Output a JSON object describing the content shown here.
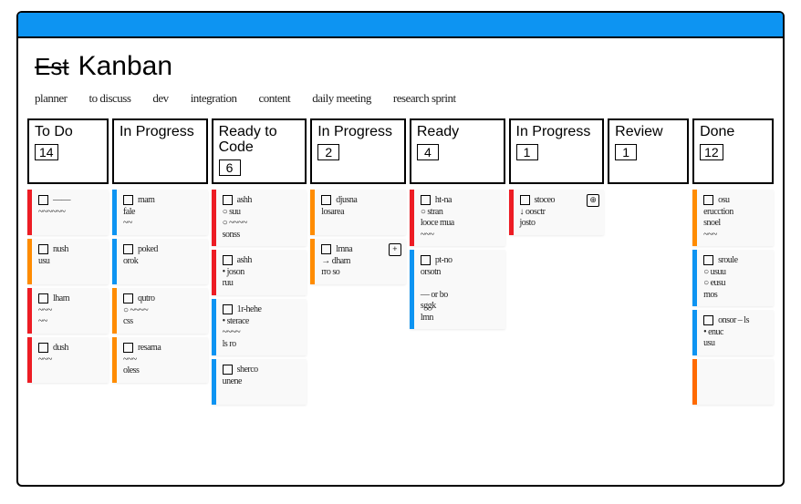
{
  "colors": {
    "frame": "#000000",
    "topbar": "#0d94f2",
    "shadow": "#e2e2e2",
    "card_bg": "#f9f9f9",
    "stripe_red": "#ed1c24",
    "stripe_orange": "#ff8c00",
    "stripe_blue": "#0d94f2",
    "stripe_orange2": "#ff6a00"
  },
  "title_struck": "Est",
  "title": "Kanban",
  "tabs": [
    "Planner",
    "To discuss",
    "Dev",
    "Integration",
    "Content",
    "Daily meeting",
    "Research sprint"
  ],
  "columns": [
    {
      "title": "To Do",
      "count": "14",
      "narrow": true,
      "cards": [
        {
          "stripe": "stripe_red",
          "lines": [
            "▢ ——",
            "~~~~~~"
          ]
        },
        {
          "stripe": "stripe_orange",
          "lines": [
            "▢ nush",
            "usu"
          ]
        },
        {
          "stripe": "stripe_red",
          "lines": [
            "▢ lham",
            "~~~",
            "~~"
          ]
        },
        {
          "stripe": "stripe_red",
          "lines": [
            "▢ dush",
            "~~~"
          ]
        }
      ]
    },
    {
      "title": "In Progress",
      "count": "",
      "cards": [
        {
          "stripe": "stripe_blue",
          "lines": [
            "▢ mam",
            "fale",
            "~~"
          ]
        },
        {
          "stripe": "stripe_blue",
          "lines": [
            "▢ poked",
            "orok"
          ]
        },
        {
          "stripe": "stripe_orange",
          "lines": [
            "▢ qutro",
            "○ ~~~~",
            "css"
          ]
        },
        {
          "stripe": "stripe_orange",
          "lines": [
            "▢ resama",
            "~~~",
            "oless"
          ]
        }
      ]
    },
    {
      "title": "Ready to Code",
      "count": "6",
      "cards": [
        {
          "stripe": "stripe_red",
          "lines": [
            "▢ ashh",
            "○ suu",
            "○ ~~~~",
            "sonss"
          ]
        },
        {
          "stripe": "stripe_red",
          "lines": [
            "▢ ashh",
            "• joson",
            "ruu"
          ]
        },
        {
          "stripe": "stripe_blue",
          "lines": [
            "▢ 1r-hehe",
            "• sterace",
            "~~~~",
            "ls ro"
          ]
        },
        {
          "stripe": "stripe_blue",
          "lines": [
            "▢ sherco",
            "unene"
          ]
        }
      ]
    },
    {
      "title": "In Progress",
      "count": "2",
      "cards": [
        {
          "stripe": "stripe_orange",
          "lines": [
            "▢ djusna",
            "losarea"
          ]
        },
        {
          "stripe": "stripe_orange",
          "pin": "+",
          "lines": [
            "▢ lmna",
            "→ dham",
            "rro so"
          ]
        }
      ]
    },
    {
      "title": "Ready",
      "count": "4",
      "cards": [
        {
          "stripe": "stripe_red",
          "lines": [
            "▢ ht-na",
            "○ stran",
            "looce mua",
            "~~~"
          ]
        },
        {
          "stripe": "stripe_blue",
          "lines": [
            "▢ pt-no",
            "orsotn",
            "",
            "  — or bo",
            "  sggk",
            "  lmn"
          ]
        }
      ]
    },
    {
      "title": "In Progress",
      "count": "1",
      "cards": [
        {
          "stripe": "stripe_red",
          "pin": "⊕",
          "lines": [
            "▢ stoceo",
            "↓ oosctr",
            "josto"
          ]
        }
      ]
    },
    {
      "title": "Review",
      "count": "1",
      "narrow": true,
      "cards": []
    },
    {
      "title": "Done",
      "count": "12",
      "narrow": true,
      "cards": [
        {
          "stripe": "stripe_orange",
          "lines": [
            "▢ osu",
            "erucction",
            "snoel",
            "~~~"
          ]
        },
        {
          "stripe": "stripe_blue",
          "lines": [
            "▢ sroule",
            "○ usuu",
            "○ eusu",
            "mos"
          ]
        },
        {
          "stripe": "stripe_blue",
          "lines": [
            "▢ onsor – ls",
            "• enuc",
            "usu"
          ]
        },
        {
          "stripe": "stripe_orange2",
          "lines": [
            " "
          ]
        }
      ]
    }
  ]
}
